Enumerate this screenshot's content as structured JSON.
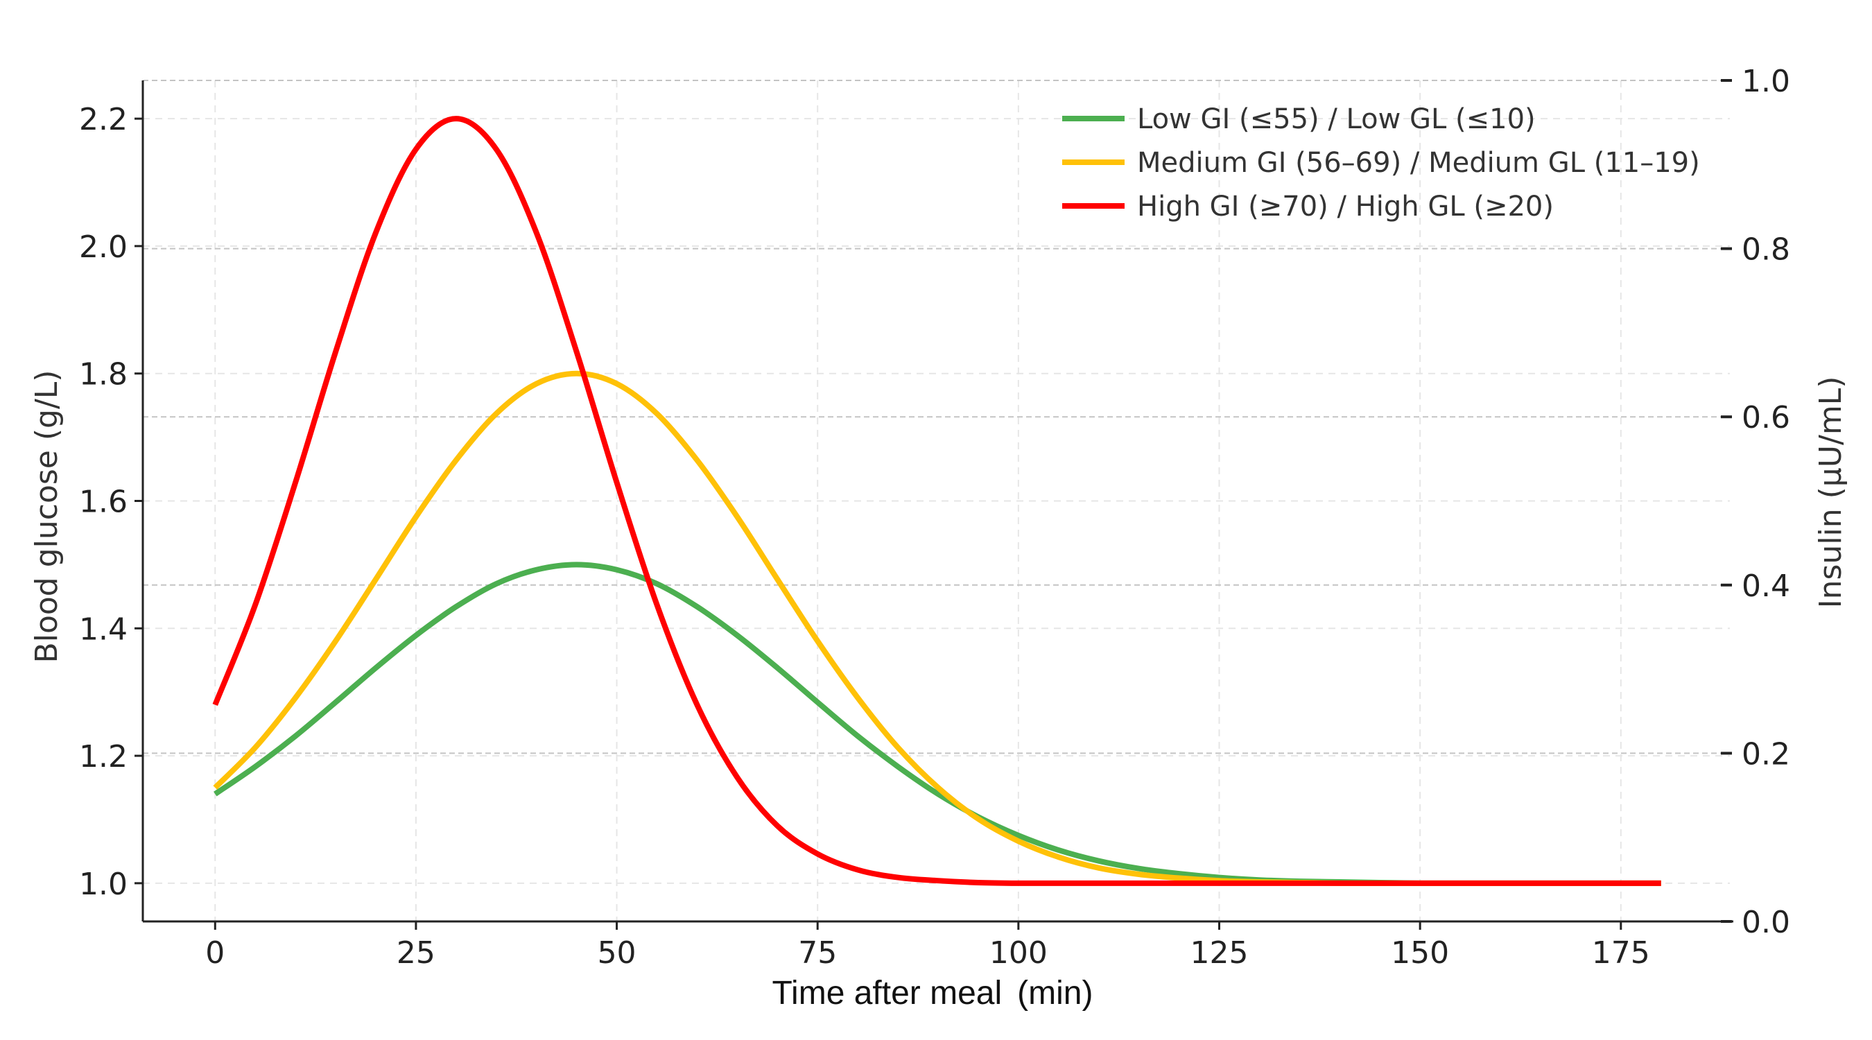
{
  "chart_data": {
    "type": "line",
    "title": "",
    "xlabel": "Time after meal",
    "xlabel_unit": "(min)",
    "ylabel": "Blood glucose (g/L)",
    "y2label": "Insulin (µU/mL)",
    "xlim": [
      -9,
      189
    ],
    "ylim": [
      0.94,
      2.26
    ],
    "y2lim": [
      0.0,
      1.0
    ],
    "xticks": [
      0,
      25,
      50,
      75,
      100,
      125,
      150,
      175
    ],
    "xtick_labels": [
      "0",
      "25",
      "50",
      "75",
      "100",
      "125",
      "150",
      "175"
    ],
    "yticks": [
      1.0,
      1.2,
      1.4,
      1.6,
      1.8,
      2.0,
      2.2
    ],
    "ytick_labels": [
      "1.0",
      "1.2",
      "1.4",
      "1.6",
      "1.8",
      "2.0",
      "2.2"
    ],
    "y2ticks": [
      0.0,
      0.2,
      0.4,
      0.6,
      0.8,
      1.0
    ],
    "y2tick_labels": [
      "0.0",
      "0.2",
      "0.4",
      "0.6",
      "0.8",
      "1.0"
    ],
    "grid": true,
    "legend_position": "top-right",
    "x": [
      0,
      5,
      10,
      15,
      20,
      25,
      30,
      35,
      40,
      45,
      50,
      55,
      60,
      65,
      70,
      75,
      80,
      85,
      90,
      95,
      100,
      105,
      110,
      115,
      120,
      125,
      130,
      135,
      140,
      145,
      150,
      155,
      160,
      165,
      170,
      175,
      180
    ],
    "series": [
      {
        "name": "Low GI (≤55) / Low GL (≤10)",
        "color": "#4caf50",
        "values": [
          1.14,
          1.183,
          1.231,
          1.284,
          1.338,
          1.389,
          1.434,
          1.47,
          1.492,
          1.5,
          1.492,
          1.47,
          1.434,
          1.389,
          1.338,
          1.284,
          1.231,
          1.183,
          1.14,
          1.104,
          1.075,
          1.052,
          1.035,
          1.023,
          1.015,
          1.009,
          1.005,
          1.003,
          1.002,
          1.001,
          1.0,
          1.0,
          1.0,
          1.0,
          1.0,
          1.0,
          1.0
        ]
      },
      {
        "name": "Medium GI (56–69) / Medium GL (11–19)",
        "color": "#ffc107",
        "values": [
          1.15,
          1.213,
          1.291,
          1.38,
          1.477,
          1.575,
          1.664,
          1.737,
          1.784,
          1.8,
          1.784,
          1.737,
          1.664,
          1.575,
          1.477,
          1.38,
          1.291,
          1.213,
          1.15,
          1.101,
          1.066,
          1.041,
          1.024,
          1.014,
          1.008,
          1.004,
          1.002,
          1.001,
          1.0,
          1.0,
          1.0,
          1.0,
          1.0,
          1.0,
          1.0,
          1.0,
          1.0
        ]
      },
      {
        "name": "High GI (≥70) / High GL (≥20)",
        "color": "#ff0000",
        "values": [
          1.28,
          1.437,
          1.629,
          1.834,
          2.021,
          2.152,
          2.2,
          2.152,
          2.021,
          1.834,
          1.629,
          1.437,
          1.28,
          1.166,
          1.09,
          1.046,
          1.021,
          1.009,
          1.004,
          1.001,
          1.0,
          1.0,
          1.0,
          1.0,
          1.0,
          1.0,
          1.0,
          1.0,
          1.0,
          1.0,
          1.0,
          1.0,
          1.0,
          1.0,
          1.0,
          1.0,
          1.0
        ]
      }
    ]
  }
}
